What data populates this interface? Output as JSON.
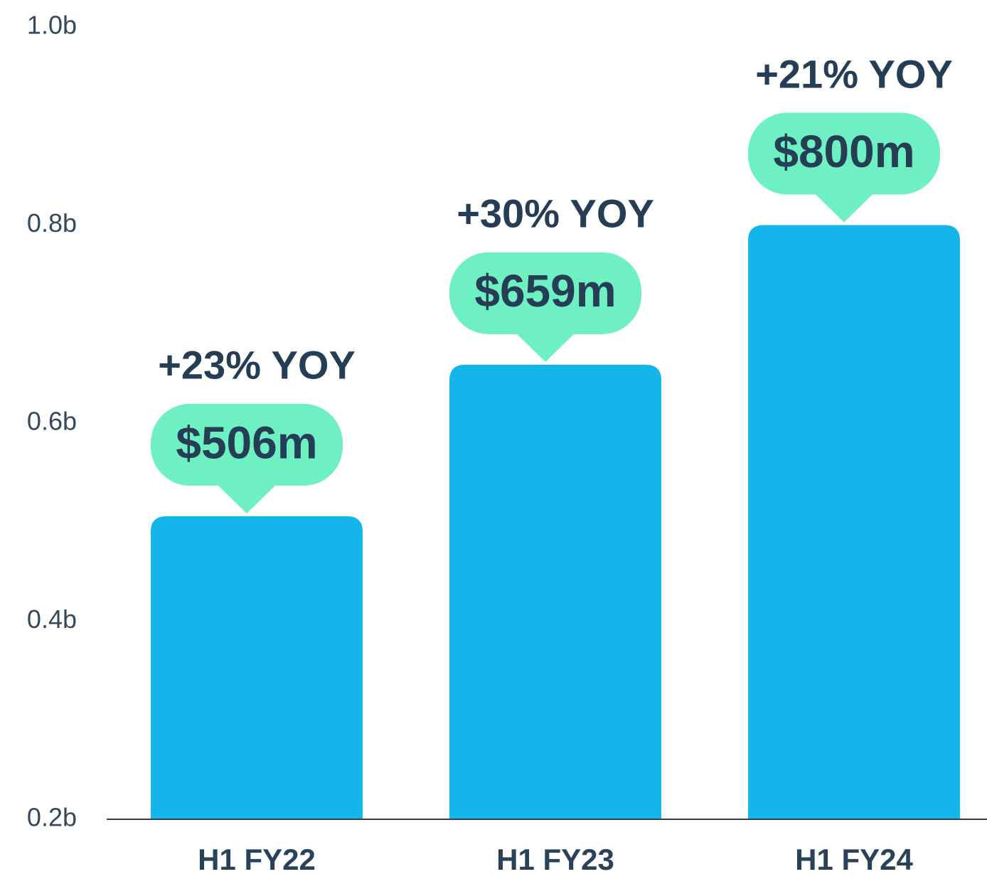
{
  "chart_data": {
    "type": "bar",
    "categories": [
      "H1 FY22",
      "H1 FY23",
      "H1 FY24"
    ],
    "values": [
      0.506,
      0.659,
      0.8
    ],
    "value_labels": [
      "$506m",
      "$659m",
      "$800m"
    ],
    "annotations": [
      "+23% YOY",
      "+30% YOY",
      "+21% YOY"
    ],
    "color": "#13b5ea",
    "label_color": "#6ef0c2",
    "ylim": [
      0.2,
      1.0
    ],
    "yticks": [
      {
        "value": 0.2,
        "label": "0.2b"
      },
      {
        "value": 0.4,
        "label": "0.4b"
      },
      {
        "value": 0.6,
        "label": "0.6b"
      },
      {
        "value": 0.8,
        "label": "0.8b"
      },
      {
        "value": 1.0,
        "label": "1.0b"
      }
    ],
    "grid": false
  }
}
